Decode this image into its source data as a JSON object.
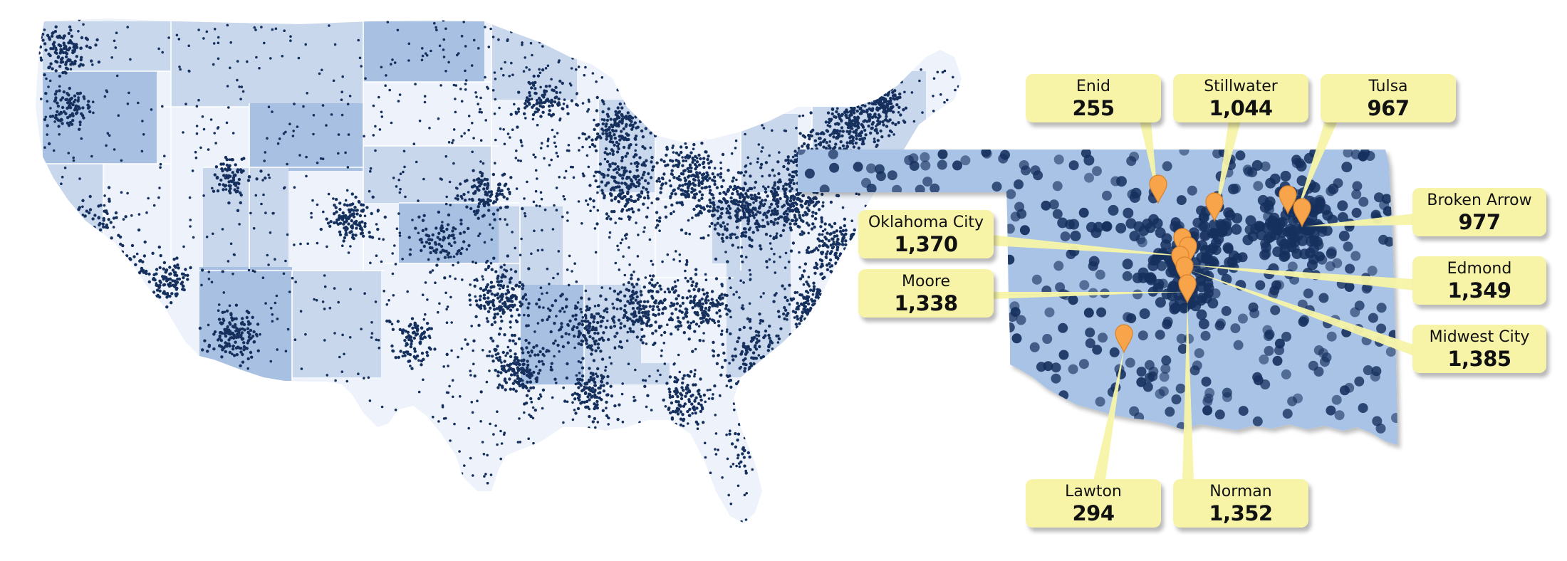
{
  "maps": {
    "left": "United States",
    "right": "Oklahoma"
  },
  "colors": {
    "dot": "#16305e",
    "state_fill_light": "#eef3fb",
    "state_fill_mid": "#c8d7ec",
    "state_fill_dark": "#a8c0e2",
    "oklahoma_fill": "#a9c3e6",
    "callout": "#f7f4a8",
    "marker": "#f7a44b"
  },
  "icons": {
    "marker": "map-pin-icon"
  },
  "cities": [
    {
      "id": "enid",
      "name": "Enid",
      "value": "255"
    },
    {
      "id": "stillwater",
      "name": "Stillwater",
      "value": "1,044"
    },
    {
      "id": "tulsa",
      "name": "Tulsa",
      "value": "967"
    },
    {
      "id": "broken-arrow",
      "name": "Broken Arrow",
      "value": "977"
    },
    {
      "id": "oklahoma-city",
      "name": "Oklahoma City",
      "value": "1,370"
    },
    {
      "id": "edmond",
      "name": "Edmond",
      "value": "1,349"
    },
    {
      "id": "moore",
      "name": "Moore",
      "value": "1,338"
    },
    {
      "id": "midwest-city",
      "name": "Midwest City",
      "value": "1,385"
    },
    {
      "id": "lawton",
      "name": "Lawton",
      "value": "294"
    },
    {
      "id": "norman",
      "name": "Norman",
      "value": "1,352"
    }
  ]
}
